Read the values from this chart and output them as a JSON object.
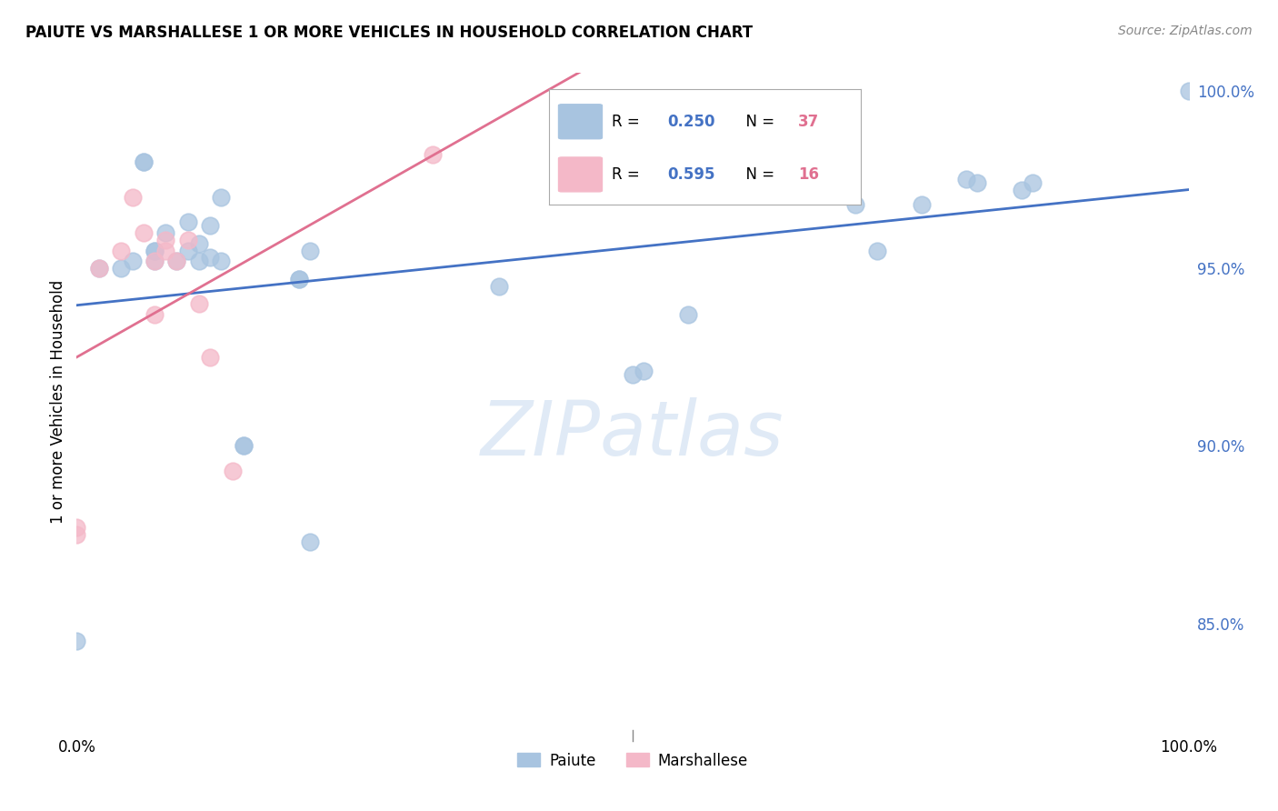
{
  "title": "PAIUTE VS MARSHALLESE 1 OR MORE VEHICLES IN HOUSEHOLD CORRELATION CHART",
  "source": "Source: ZipAtlas.com",
  "ylabel": "1 or more Vehicles in Household",
  "xlim": [
    0.0,
    1.0
  ],
  "ylim": [
    0.82,
    1.005
  ],
  "yticks": [
    0.85,
    0.9,
    0.95,
    1.0
  ],
  "ytick_labels": [
    "85.0%",
    "90.0%",
    "95.0%",
    "100.0%"
  ],
  "paiute_r": 0.25,
  "paiute_n": 37,
  "marshallese_r": 0.595,
  "marshallese_n": 16,
  "paiute_color": "#a8c4e0",
  "marshallese_color": "#f4b8c8",
  "trendline_paiute_color": "#4472c4",
  "trendline_marshallese_color": "#e07090",
  "paiute_x": [
    0.0,
    0.02,
    0.04,
    0.05,
    0.06,
    0.06,
    0.07,
    0.07,
    0.07,
    0.08,
    0.09,
    0.1,
    0.1,
    0.11,
    0.11,
    0.12,
    0.12,
    0.13,
    0.13,
    0.15,
    0.15,
    0.2,
    0.2,
    0.21,
    0.21,
    0.38,
    0.5,
    0.51,
    0.55,
    0.7,
    0.72,
    0.76,
    0.8,
    0.81,
    0.85,
    0.86,
    1.0
  ],
  "paiute_y": [
    0.845,
    0.95,
    0.95,
    0.952,
    0.98,
    0.98,
    0.952,
    0.955,
    0.955,
    0.96,
    0.952,
    0.955,
    0.963,
    0.957,
    0.952,
    0.962,
    0.953,
    0.97,
    0.952,
    0.9,
    0.9,
    0.947,
    0.947,
    0.873,
    0.955,
    0.945,
    0.92,
    0.921,
    0.937,
    0.968,
    0.955,
    0.968,
    0.975,
    0.974,
    0.972,
    0.974,
    1.0
  ],
  "marshallese_x": [
    0.0,
    0.0,
    0.02,
    0.04,
    0.05,
    0.06,
    0.07,
    0.07,
    0.08,
    0.08,
    0.09,
    0.1,
    0.11,
    0.12,
    0.14,
    0.32
  ],
  "marshallese_y": [
    0.875,
    0.877,
    0.95,
    0.955,
    0.97,
    0.96,
    0.952,
    0.937,
    0.955,
    0.958,
    0.952,
    0.958,
    0.94,
    0.925,
    0.893,
    0.982
  ]
}
